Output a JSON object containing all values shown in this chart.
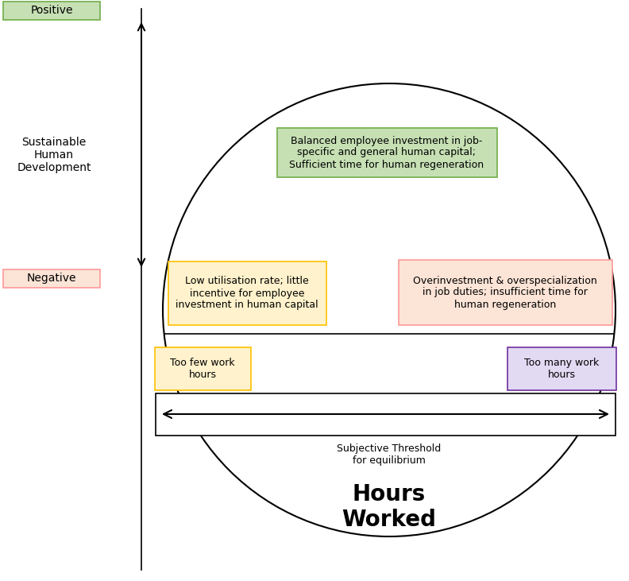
{
  "fig_width": 7.92,
  "fig_height": 7.31,
  "dpi": 100,
  "positive_label": "Positive",
  "negative_label": "Negative",
  "y_axis_label": "Sustainable\nHuman\nDevelopment",
  "green_box_text": "Balanced employee investment in job-\nspecific and general human capital;\nSufficient time for human regeneration",
  "green_box_color": "#c6e0b4",
  "green_box_edge": "#70ad47",
  "yellow_box_text": "Low utilisation rate; little\nincentive for employee\ninvestment in human capital",
  "yellow_box_color": "#fff2cc",
  "yellow_box_edge": "#ffc000",
  "pink_box_text": "Overinvestment & overspecialization\nin job duties; insufficient time for\nhuman regeneration",
  "pink_box_color": "#fce4d6",
  "pink_box_edge": "#ff9999",
  "purple_box_text": "Too many work\nhours",
  "purple_box_color": "#e2d9f3",
  "purple_box_edge": "#7030a0",
  "orange_box_text": "Too few work\nhours",
  "orange_box_color": "#fff2cc",
  "orange_box_edge": "#ffc000",
  "hours_worked_label": "Hours\nWorked",
  "subjective_threshold_label": "Subjective Threshold\nfor equilibrium",
  "pos_box_color": "#c6e0b4",
  "pos_box_edge": "#70ad47",
  "neg_box_color": "#fce4d6",
  "neg_box_edge": "#ff9999"
}
